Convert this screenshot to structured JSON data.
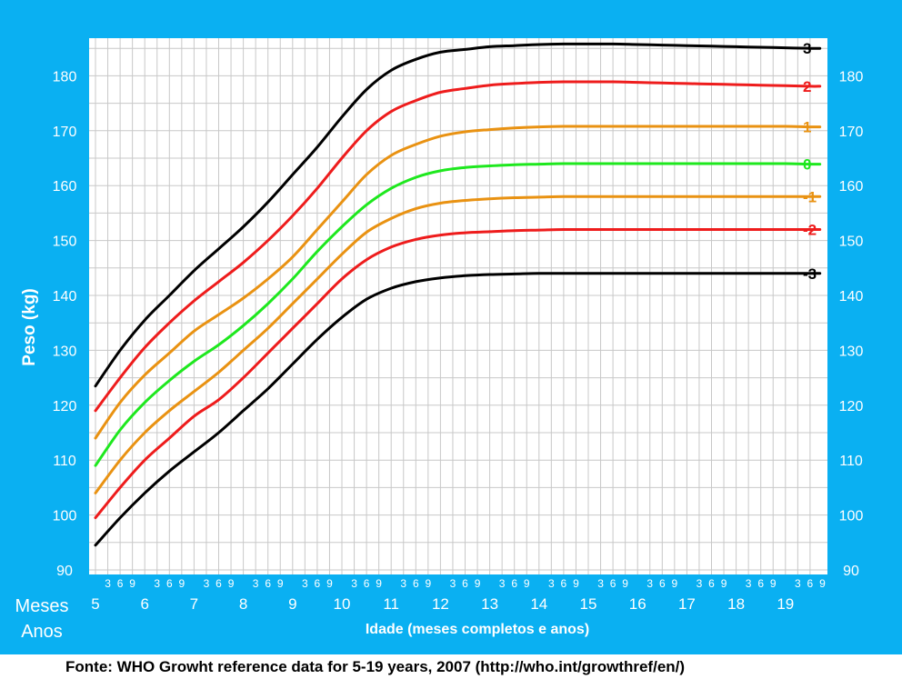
{
  "source_note": "Fonte: WHO Growht reference data for 5-19 years, 2007 (http://who.int/growthref/en/)",
  "colors": {
    "frame": "#0ab0f2",
    "plot": "#ffffff",
    "grid": "#c8c8c8",
    "axis_text": "#ffffff"
  },
  "chart_data": {
    "type": "line",
    "title": "",
    "ylabel": "Peso (kg)",
    "xlabel": "Idade (meses completos e anos)",
    "ylim": [
      90,
      187
    ],
    "xlim": [
      5,
      19.7
    ],
    "y_ticks": [
      90,
      100,
      110,
      120,
      130,
      140,
      150,
      160,
      170,
      180
    ],
    "x_year_label": "Anos",
    "x_month_label": "Meses",
    "x_year_ticks": [
      "5",
      "6",
      "7",
      "8",
      "9",
      "10",
      "11",
      "12",
      "13",
      "14",
      "15",
      "16",
      "17",
      "18",
      "19"
    ],
    "x_month_ticks": [
      "3",
      "6",
      "9"
    ],
    "grid": true,
    "legend": "right end labels",
    "series": [
      {
        "name": "3",
        "color": "#000000",
        "points": [
          [
            5,
            123.5
          ],
          [
            5.5,
            130
          ],
          [
            6,
            135.5
          ],
          [
            6.5,
            140
          ],
          [
            7,
            144.5
          ],
          [
            7.5,
            148.5
          ],
          [
            8,
            152.5
          ],
          [
            8.5,
            157
          ],
          [
            9,
            162
          ],
          [
            9.5,
            167
          ],
          [
            10,
            172.5
          ],
          [
            10.5,
            177.5
          ],
          [
            11,
            181
          ],
          [
            11.5,
            183
          ],
          [
            12,
            184.3
          ],
          [
            12.5,
            184.8
          ],
          [
            13,
            185.3
          ],
          [
            13.5,
            185.5
          ],
          [
            14,
            185.7
          ],
          [
            14.5,
            185.8
          ],
          [
            15,
            185.8
          ],
          [
            15.5,
            185.8
          ],
          [
            16,
            185.7
          ],
          [
            16.5,
            185.6
          ],
          [
            17,
            185.5
          ],
          [
            17.5,
            185.4
          ],
          [
            18,
            185.3
          ],
          [
            18.5,
            185.2
          ],
          [
            19,
            185.1
          ],
          [
            19.5,
            185
          ],
          [
            19.7,
            185
          ]
        ]
      },
      {
        "name": "2",
        "color": "#ee1c1c",
        "points": [
          [
            5,
            119
          ],
          [
            5.5,
            125
          ],
          [
            6,
            130.5
          ],
          [
            6.5,
            135
          ],
          [
            7,
            139
          ],
          [
            7.5,
            142.5
          ],
          [
            8,
            146
          ],
          [
            8.5,
            150
          ],
          [
            9,
            154.5
          ],
          [
            9.5,
            159.5
          ],
          [
            10,
            165
          ],
          [
            10.5,
            170
          ],
          [
            11,
            173.5
          ],
          [
            11.5,
            175.5
          ],
          [
            12,
            177
          ],
          [
            12.5,
            177.7
          ],
          [
            13,
            178.3
          ],
          [
            13.5,
            178.6
          ],
          [
            14,
            178.8
          ],
          [
            14.5,
            178.9
          ],
          [
            15,
            178.9
          ],
          [
            15.5,
            178.9
          ],
          [
            16,
            178.8
          ],
          [
            16.5,
            178.7
          ],
          [
            17,
            178.6
          ],
          [
            17.5,
            178.5
          ],
          [
            18,
            178.4
          ],
          [
            18.5,
            178.3
          ],
          [
            19,
            178.2
          ],
          [
            19.5,
            178.1
          ],
          [
            19.7,
            178.1
          ]
        ]
      },
      {
        "name": "1",
        "color": "#e99212",
        "points": [
          [
            5,
            114
          ],
          [
            5.5,
            120.5
          ],
          [
            6,
            125.5
          ],
          [
            6.5,
            129.5
          ],
          [
            7,
            133.5
          ],
          [
            7.5,
            136.5
          ],
          [
            8,
            139.5
          ],
          [
            8.5,
            143
          ],
          [
            9,
            147
          ],
          [
            9.5,
            152
          ],
          [
            10,
            157
          ],
          [
            10.5,
            162
          ],
          [
            11,
            165.5
          ],
          [
            11.5,
            167.5
          ],
          [
            12,
            169
          ],
          [
            12.5,
            169.8
          ],
          [
            13,
            170.2
          ],
          [
            13.5,
            170.5
          ],
          [
            14,
            170.7
          ],
          [
            14.5,
            170.8
          ],
          [
            15,
            170.8
          ],
          [
            15.5,
            170.8
          ],
          [
            16,
            170.8
          ],
          [
            16.5,
            170.8
          ],
          [
            17,
            170.8
          ],
          [
            17.5,
            170.8
          ],
          [
            18,
            170.8
          ],
          [
            18.5,
            170.8
          ],
          [
            19,
            170.8
          ],
          [
            19.5,
            170.7
          ],
          [
            19.7,
            170.7
          ]
        ]
      },
      {
        "name": "0",
        "color": "#1ee81e",
        "points": [
          [
            5,
            109
          ],
          [
            5.5,
            115.5
          ],
          [
            6,
            120.5
          ],
          [
            6.5,
            124.5
          ],
          [
            7,
            128
          ],
          [
            7.5,
            131
          ],
          [
            8,
            134.5
          ],
          [
            8.5,
            138.5
          ],
          [
            9,
            143
          ],
          [
            9.5,
            148
          ],
          [
            10,
            152.5
          ],
          [
            10.5,
            156.5
          ],
          [
            11,
            159.5
          ],
          [
            11.5,
            161.5
          ],
          [
            12,
            162.7
          ],
          [
            12.5,
            163.3
          ],
          [
            13,
            163.6
          ],
          [
            13.5,
            163.8
          ],
          [
            14,
            163.9
          ],
          [
            14.5,
            164
          ],
          [
            15,
            164
          ],
          [
            15.5,
            164
          ],
          [
            16,
            164
          ],
          [
            16.5,
            164
          ],
          [
            17,
            164
          ],
          [
            17.5,
            164
          ],
          [
            18,
            164
          ],
          [
            18.5,
            164
          ],
          [
            19,
            164
          ],
          [
            19.5,
            163.9
          ],
          [
            19.7,
            163.9
          ]
        ]
      },
      {
        "name": "-1",
        "color": "#e99212",
        "points": [
          [
            5,
            104
          ],
          [
            5.5,
            110
          ],
          [
            6,
            115
          ],
          [
            6.5,
            119
          ],
          [
            7,
            122.5
          ],
          [
            7.5,
            126
          ],
          [
            8,
            130
          ],
          [
            8.5,
            134
          ],
          [
            9,
            138.5
          ],
          [
            9.5,
            143
          ],
          [
            10,
            147.5
          ],
          [
            10.5,
            151.5
          ],
          [
            11,
            154
          ],
          [
            11.5,
            155.8
          ],
          [
            12,
            156.8
          ],
          [
            12.5,
            157.3
          ],
          [
            13,
            157.6
          ],
          [
            13.5,
            157.8
          ],
          [
            14,
            157.9
          ],
          [
            14.5,
            158
          ],
          [
            15,
            158
          ],
          [
            15.5,
            158
          ],
          [
            16,
            158
          ],
          [
            16.5,
            158
          ],
          [
            17,
            158
          ],
          [
            17.5,
            158
          ],
          [
            18,
            158
          ],
          [
            18.5,
            158
          ],
          [
            19,
            158
          ],
          [
            19.5,
            158
          ],
          [
            19.7,
            158
          ]
        ]
      },
      {
        "name": "-2",
        "color": "#ee1c1c",
        "points": [
          [
            5,
            99.5
          ],
          [
            5.5,
            105
          ],
          [
            6,
            110
          ],
          [
            6.5,
            114
          ],
          [
            7,
            118
          ],
          [
            7.5,
            121
          ],
          [
            8,
            125
          ],
          [
            8.5,
            129.5
          ],
          [
            9,
            134
          ],
          [
            9.5,
            138.5
          ],
          [
            10,
            143
          ],
          [
            10.5,
            146.5
          ],
          [
            11,
            148.8
          ],
          [
            11.5,
            150.2
          ],
          [
            12,
            151
          ],
          [
            12.5,
            151.4
          ],
          [
            13,
            151.6
          ],
          [
            13.5,
            151.8
          ],
          [
            14,
            151.9
          ],
          [
            14.5,
            152
          ],
          [
            15,
            152
          ],
          [
            15.5,
            152
          ],
          [
            16,
            152
          ],
          [
            16.5,
            152
          ],
          [
            17,
            152
          ],
          [
            17.5,
            152
          ],
          [
            18,
            152
          ],
          [
            18.5,
            152
          ],
          [
            19,
            152
          ],
          [
            19.5,
            152
          ],
          [
            19.7,
            152
          ]
        ]
      },
      {
        "name": "-3",
        "color": "#000000",
        "points": [
          [
            5,
            94.5
          ],
          [
            5.5,
            99.5
          ],
          [
            6,
            104
          ],
          [
            6.5,
            108
          ],
          [
            7,
            111.5
          ],
          [
            7.5,
            115
          ],
          [
            8,
            119
          ],
          [
            8.5,
            123
          ],
          [
            9,
            127.5
          ],
          [
            9.5,
            132
          ],
          [
            10,
            136
          ],
          [
            10.5,
            139.3
          ],
          [
            11,
            141.3
          ],
          [
            11.5,
            142.5
          ],
          [
            12,
            143.2
          ],
          [
            12.5,
            143.6
          ],
          [
            13,
            143.8
          ],
          [
            13.5,
            143.9
          ],
          [
            14,
            144
          ],
          [
            14.5,
            144
          ],
          [
            15,
            144
          ],
          [
            15.5,
            144
          ],
          [
            16,
            144
          ],
          [
            16.5,
            144
          ],
          [
            17,
            144
          ],
          [
            17.5,
            144
          ],
          [
            18,
            144
          ],
          [
            18.5,
            144
          ],
          [
            19,
            144
          ],
          [
            19.5,
            144
          ],
          [
            19.7,
            144
          ]
        ]
      }
    ]
  }
}
